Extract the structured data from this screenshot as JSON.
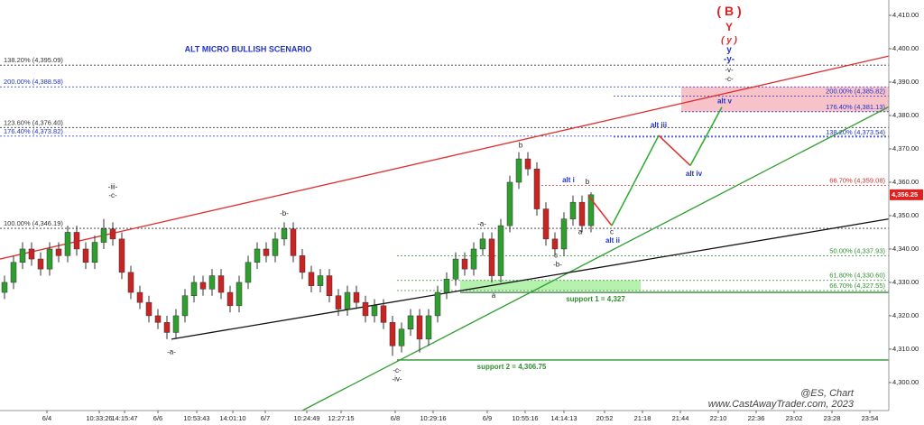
{
  "chart_data": {
    "type": "candlestick",
    "title": "ALT MICRO BULLISH SCENARIO",
    "watermark": [
      "@ES, Chart",
      "www.CastAwayTrader.com, 2023"
    ],
    "xlim": [
      0,
      98.5
    ],
    "ylim": [
      4291.6,
      4414.6
    ],
    "yticks": [
      {
        "value": 4300,
        "label": "4,300.00"
      },
      {
        "value": 4310,
        "label": "4,310.00"
      },
      {
        "value": 4320,
        "label": "4,320.00"
      },
      {
        "value": 4330,
        "label": "4,330.00"
      },
      {
        "value": 4340,
        "label": "4,340.00"
      },
      {
        "value": 4350,
        "label": "4,350.00"
      },
      {
        "value": 4360,
        "label": "4,360.00"
      },
      {
        "value": 4370,
        "label": "4,370.00"
      },
      {
        "value": 4380,
        "label": "4,380.00"
      },
      {
        "value": 4390,
        "label": "4,390.00"
      },
      {
        "value": 4400,
        "label": "4,400.00"
      },
      {
        "value": 4410,
        "label": "4,410.00"
      }
    ],
    "xticks": [
      {
        "value": 5.2,
        "label": "6/4"
      },
      {
        "value": 11,
        "label": "10:33:26"
      },
      {
        "value": 13.8,
        "label": "14:15:47"
      },
      {
        "value": 17.5,
        "label": "6/6"
      },
      {
        "value": 21.8,
        "label": "10:53:43"
      },
      {
        "value": 25.8,
        "label": "14:01:10"
      },
      {
        "value": 29.4,
        "label": "6/7"
      },
      {
        "value": 34,
        "label": "10:24:49"
      },
      {
        "value": 37.8,
        "label": "12:27:15"
      },
      {
        "value": 43.8,
        "label": "6/8"
      },
      {
        "value": 48,
        "label": "10:29:16"
      },
      {
        "value": 54,
        "label": "6/9"
      },
      {
        "value": 58.2,
        "label": "10:55:16"
      },
      {
        "value": 62.5,
        "label": "14:14:13"
      },
      {
        "value": 67,
        "label": "20:52"
      },
      {
        "value": 71.2,
        "label": "21:18"
      },
      {
        "value": 75.4,
        "label": "21:44"
      },
      {
        "value": 79.6,
        "label": "22:10"
      },
      {
        "value": 83.8,
        "label": "22:36"
      },
      {
        "value": 88,
        "label": "23:02"
      },
      {
        "value": 92.2,
        "label": "23:28"
      },
      {
        "value": 96.4,
        "label": "23:54"
      }
    ],
    "up_color": "#2f9e2f",
    "down_color": "#c82424",
    "x": [
      0.5,
      1.5,
      2.5,
      3.5,
      4.5,
      5.5,
      6.5,
      7.5,
      8.5,
      9.5,
      10.5,
      11.5,
      12.5,
      13.5,
      14.5,
      15.5,
      16.5,
      17.5,
      18.5,
      19.5,
      20.5,
      21.5,
      22.5,
      23.5,
      24.5,
      25.5,
      26.5,
      27.5,
      28.5,
      29.5,
      30.5,
      31.5,
      32.5,
      33.5,
      34.5,
      35.5,
      36.5,
      37.5,
      38.5,
      39.5,
      40.5,
      41.5,
      42.5,
      43.5,
      44.5,
      45.5,
      46.5,
      47.5,
      48.5,
      49.5,
      50.5,
      51.5,
      52.5,
      53.5,
      54.5,
      55.5,
      56.5,
      57.5,
      58.5,
      59.5,
      60.5,
      61.5,
      62.5,
      63.5,
      64.5,
      65.5
    ],
    "open": [
      4327,
      4330,
      4336,
      4340,
      4337,
      4334,
      4340,
      4338,
      4345,
      4340,
      4336,
      4342,
      4346,
      4343,
      4333,
      4327,
      4324,
      4320,
      4318,
      4315,
      4320,
      4326,
      4330,
      4328,
      4332,
      4327,
      4323,
      4330,
      4336,
      4340,
      4338,
      4343,
      4346,
      4338,
      4333,
      4329,
      4332,
      4326,
      4322,
      4327,
      4324,
      4320,
      4323,
      4318,
      4311,
      4316,
      4320,
      4313,
      4320,
      4327,
      4331,
      4337,
      4334,
      4340,
      4343,
      4332,
      4347,
      4360,
      4367,
      4364,
      4352,
      4343,
      4340,
      4349,
      4354,
      4347
    ],
    "high": [
      4332,
      4338,
      4342,
      4342,
      4339,
      4342,
      4342,
      4347,
      4347,
      4342,
      4344,
      4349,
      4348,
      4345,
      4335,
      4329,
      4326,
      4322,
      4320,
      4322,
      4328,
      4332,
      4332,
      4334,
      4334,
      4329,
      4332,
      4338,
      4342,
      4342,
      4345,
      4348,
      4348,
      4340,
      4335,
      4334,
      4334,
      4328,
      4329,
      4329,
      4326,
      4325,
      4325,
      4320,
      4318,
      4322,
      4322,
      4322,
      4329,
      4333,
      4339,
      4339,
      4342,
      4345,
      4345,
      4349,
      4362,
      4369,
      4369,
      4366,
      4354,
      4345,
      4351,
      4356,
      4356,
      4357
    ],
    "low": [
      4325,
      4328,
      4334,
      4335,
      4332,
      4332,
      4336,
      4336,
      4338,
      4334,
      4334,
      4340,
      4341,
      4331,
      4325,
      4322,
      4318,
      4316,
      4313,
      4313,
      4318,
      4324,
      4326,
      4326,
      4325,
      4321,
      4321,
      4328,
      4334,
      4336,
      4336,
      4341,
      4336,
      4331,
      4327,
      4327,
      4324,
      4320,
      4320,
      4322,
      4318,
      4318,
      4316,
      4308,
      4309,
      4314,
      4309,
      4311,
      4318,
      4325,
      4329,
      4332,
      4332,
      4338,
      4330,
      4330,
      4345,
      4358,
      4362,
      4350,
      4341,
      4338,
      4338,
      4347,
      4345,
      4345
    ],
    "close": [
      4330,
      4336,
      4340,
      4337,
      4334,
      4340,
      4338,
      4345,
      4340,
      4336,
      4342,
      4346,
      4343,
      4333,
      4327,
      4324,
      4320,
      4318,
      4315,
      4320,
      4326,
      4330,
      4328,
      4332,
      4327,
      4323,
      4330,
      4336,
      4340,
      4338,
      4343,
      4346,
      4338,
      4333,
      4329,
      4332,
      4326,
      4322,
      4327,
      4324,
      4320,
      4323,
      4318,
      4311,
      4316,
      4320,
      4313,
      4320,
      4327,
      4331,
      4337,
      4334,
      4340,
      4343,
      4332,
      4347,
      4360,
      4367,
      4364,
      4352,
      4343,
      4340,
      4349,
      4354,
      4347,
      4356.25
    ],
    "last": {
      "value": 4356.25,
      "label": "4,356.25",
      "color": "#e02020"
    },
    "levels": [
      {
        "label": "138.20% (4,395.09)",
        "value": 4395.09,
        "color": "#333333",
        "side": "left",
        "x": [
          0,
          98.5
        ]
      },
      {
        "label": "200.00% (4,388.58)",
        "value": 4388.58,
        "color": "#2233cc",
        "side": "left",
        "x": [
          0,
          98.5
        ]
      },
      {
        "label": "123.60% (4,376.40)",
        "value": 4376.4,
        "color": "#333333",
        "side": "left",
        "x": [
          0,
          98.5
        ]
      },
      {
        "label": "176.40% (4,373.82)",
        "value": 4373.82,
        "color": "#2233cc",
        "side": "left",
        "x": [
          0,
          98.5
        ]
      },
      {
        "label": "100.00% (4,346.19)",
        "value": 4346.19,
        "color": "#333333",
        "side": "left",
        "x": [
          0,
          98.5
        ]
      },
      {
        "label": "200.00% (4,385.82)",
        "value": 4385.82,
        "color": "#2233cc",
        "side": "right",
        "x": [
          68,
          98.5
        ]
      },
      {
        "label": "176.40% (4,381.13)",
        "value": 4381.13,
        "color": "#2233cc",
        "side": "right",
        "x": [
          75.5,
          98.5
        ]
      },
      {
        "label": "138.20% (4,373.54)",
        "value": 4373.54,
        "color": "#2233cc",
        "side": "right",
        "x": [
          68,
          98.5
        ]
      },
      {
        "label": "66.70% (4,359.08)",
        "value": 4359.08,
        "color": "#c83030",
        "side": "right",
        "x": [
          60,
          98.5
        ]
      },
      {
        "label": "50.00% (4,337.93)",
        "value": 4337.93,
        "color": "#2f8f2f",
        "side": "right",
        "x": [
          44,
          98.5
        ]
      },
      {
        "label": "61.80% (4,330.60)",
        "value": 4330.6,
        "color": "#2f8f2f",
        "side": "right",
        "x": [
          44,
          98.5
        ]
      },
      {
        "label": "66.70% (4,327.55)",
        "value": 4327.55,
        "color": "#2f8f2f",
        "side": "right",
        "x": [
          44,
          98.5
        ]
      }
    ],
    "zones": [
      {
        "x": [
          51,
          71
        ],
        "y": [
          4327.55,
          4330.6
        ],
        "color": "#a8f0a0"
      },
      {
        "x": [
          75.5,
          98.5
        ],
        "y": [
          4381.13,
          4388.58
        ],
        "color": "#f6b8c0"
      }
    ],
    "supports": [
      {
        "label": "support 1 = 4,327",
        "value": 4327,
        "x": [
          51,
          98.5
        ],
        "label_x": 66,
        "color": "#2f8f2f"
      },
      {
        "label": "support 2 = 4,306.75",
        "value": 4306.75,
        "x": [
          44,
          98.5
        ],
        "label_x": 56.7,
        "color": "#2f8f2f"
      }
    ],
    "trendlines": [
      {
        "x": [
          0,
          98.5
        ],
        "y": [
          4337,
          4397.8
        ],
        "color": "#e03030"
      },
      {
        "x": [
          33.5,
          98.5
        ],
        "y": [
          4291.6,
          4382.6
        ],
        "color": "#2f9e2f"
      },
      {
        "x": [
          19,
          98.5
        ],
        "y": [
          4313,
          4349
        ],
        "color": "#111111"
      }
    ],
    "projection": [
      {
        "x": [
          65.2,
          67.8
        ],
        "y": [
          4356,
          4347
        ],
        "color": "#e03030"
      },
      {
        "x": [
          67.8,
          73
        ],
        "y": [
          4347,
          4374
        ],
        "color": "#2fae2f"
      },
      {
        "x": [
          73,
          76.5
        ],
        "y": [
          4374,
          4365
        ],
        "color": "#e03030"
      },
      {
        "x": [
          76.5,
          80
        ],
        "y": [
          4365,
          4382.5
        ],
        "color": "#2fae2f"
      }
    ],
    "wave_labels": [
      {
        "text": "-iii-",
        "x": 12.5,
        "y": 4358.5,
        "color": "#222222"
      },
      {
        "text": "-c-",
        "x": 12.5,
        "y": 4356,
        "color": "#222222"
      },
      {
        "text": "-a-",
        "x": 19,
        "y": 4309,
        "color": "#222222"
      },
      {
        "text": "-b-",
        "x": 31.5,
        "y": 4350.5,
        "color": "#222222"
      },
      {
        "text": "-c-",
        "x": 44,
        "y": 4303.5,
        "color": "#222222"
      },
      {
        "text": "-iv-",
        "x": 44,
        "y": 4301,
        "color": "#222222"
      },
      {
        "text": "-a-",
        "x": 53.4,
        "y": 4347.5,
        "color": "#222222"
      },
      {
        "text": "a",
        "x": 54.7,
        "y": 4326,
        "color": "#222222"
      },
      {
        "text": "b",
        "x": 57.7,
        "y": 4371,
        "color": "#222222"
      },
      {
        "text": "c",
        "x": 61.6,
        "y": 4338,
        "color": "#222222"
      },
      {
        "text": "-b-",
        "x": 61.8,
        "y": 4335.3,
        "color": "#222222"
      },
      {
        "text": "alt i",
        "x": 63,
        "y": 4360.5,
        "color": "#2233cc"
      },
      {
        "text": "b",
        "x": 65.1,
        "y": 4360,
        "color": "#222222"
      },
      {
        "text": "a",
        "x": 64.3,
        "y": 4345,
        "color": "#222222"
      },
      {
        "text": "c",
        "x": 67.8,
        "y": 4345,
        "color": "#222222"
      },
      {
        "text": "alt ii",
        "x": 67.9,
        "y": 4342.5,
        "color": "#2233cc"
      },
      {
        "text": "alt iii",
        "x": 73,
        "y": 4377,
        "color": "#2233cc"
      },
      {
        "text": "alt iv",
        "x": 76.9,
        "y": 4362.5,
        "color": "#2233cc"
      },
      {
        "text": "alt v",
        "x": 80.3,
        "y": 4384.2,
        "color": "#2233cc"
      },
      {
        "text": "( B )",
        "x": 80.8,
        "y": 4411,
        "color": "#e02020"
      },
      {
        "text": "Y",
        "x": 80.8,
        "y": 4406.3,
        "color": "#e02020"
      },
      {
        "text": "( y )",
        "x": 80.8,
        "y": 4402.5,
        "color": "#e02020"
      },
      {
        "text": "y",
        "x": 80.8,
        "y": 4399.6,
        "color": "#2233cc"
      },
      {
        "text": "-y-",
        "x": 80.8,
        "y": 4396.8,
        "color": "#2233cc"
      },
      {
        "text": "-v-",
        "x": 80.8,
        "y": 4393.6,
        "color": "#222222"
      },
      {
        "text": "-c-",
        "x": 80.8,
        "y": 4390.8,
        "color": "#222222"
      }
    ]
  }
}
